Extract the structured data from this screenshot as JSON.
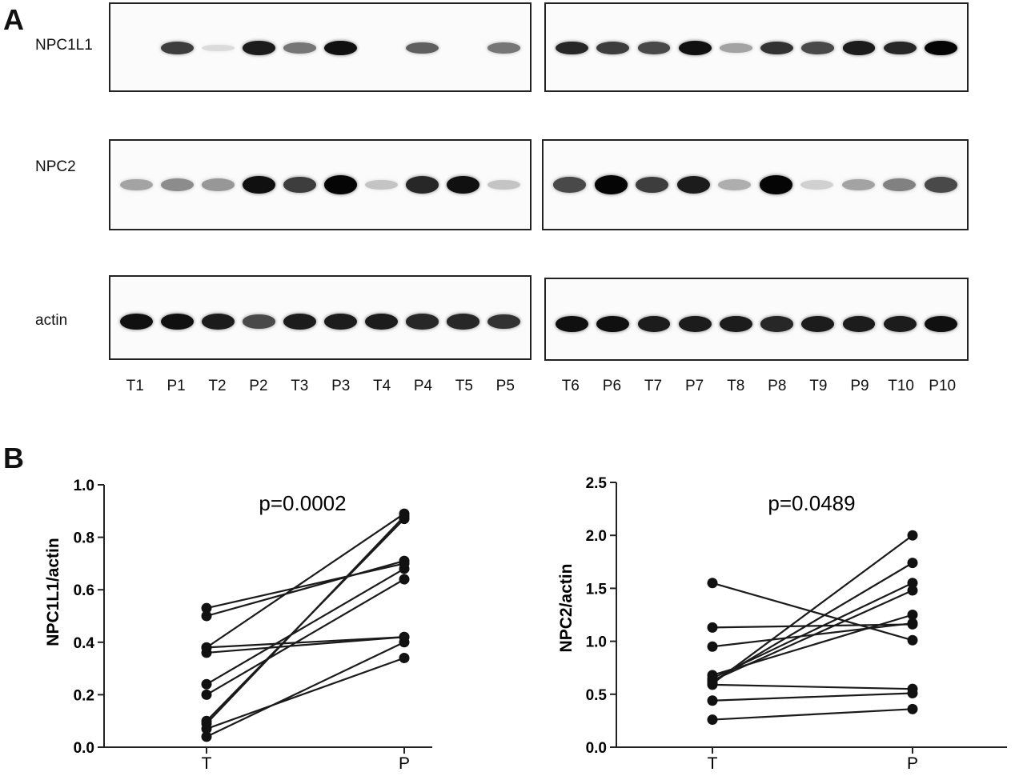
{
  "panels": {
    "a_letter": "A",
    "b_letter": "B"
  },
  "blots": [
    {
      "label": "NPC1L1",
      "left_bands": [
        0,
        0.75,
        0.05,
        0.9,
        0.5,
        0.95,
        0,
        0.6,
        0,
        0.5
      ],
      "right_bands": [
        0.85,
        0.75,
        0.7,
        0.95,
        0.3,
        0.8,
        0.7,
        0.9,
        0.85,
        1.0
      ]
    },
    {
      "label": "NPC2",
      "left_bands": [
        0.3,
        0.4,
        0.35,
        0.95,
        0.75,
        1.0,
        0.15,
        0.85,
        0.95,
        0.15
      ],
      "right_bands": [
        0.7,
        1.0,
        0.75,
        0.9,
        0.25,
        1.0,
        0.1,
        0.3,
        0.45,
        0.7
      ]
    },
    {
      "label": "actin",
      "left_bands": [
        0.95,
        0.95,
        0.9,
        0.7,
        0.9,
        0.9,
        0.9,
        0.85,
        0.85,
        0.8
      ],
      "right_bands": [
        0.95,
        0.95,
        0.9,
        0.9,
        0.9,
        0.85,
        0.9,
        0.9,
        0.9,
        0.95
      ]
    }
  ],
  "lanes_left": [
    "T1",
    "P1",
    "T2",
    "P2",
    "T3",
    "P3",
    "T4",
    "P4",
    "T5",
    "P5"
  ],
  "lanes_right": [
    "T6",
    "P6",
    "T7",
    "P7",
    "T8",
    "P8",
    "T9",
    "P9",
    "T10",
    "P10"
  ],
  "chart_data": [
    {
      "type": "line",
      "title": "p=0.0002",
      "ylabel": "NPC1L1/actin",
      "xlabel": "",
      "categories": [
        "T",
        "P"
      ],
      "ylim": [
        0,
        1.0
      ],
      "yticks": [
        "0.0",
        "0.2",
        "0.4",
        "0.6",
        "0.8",
        "1.0"
      ],
      "pairs": [
        [
          0.04,
          0.4
        ],
        [
          0.07,
          0.34
        ],
        [
          0.09,
          0.88
        ],
        [
          0.1,
          0.87
        ],
        [
          0.2,
          0.64
        ],
        [
          0.24,
          0.68
        ],
        [
          0.36,
          0.42
        ],
        [
          0.38,
          0.42
        ],
        [
          0.38,
          0.89
        ],
        [
          0.5,
          0.71
        ],
        [
          0.53,
          0.7
        ]
      ]
    },
    {
      "type": "line",
      "title": "p=0.0489",
      "ylabel": "NPC2/actin",
      "xlabel": "",
      "categories": [
        "T",
        "P"
      ],
      "ylim": [
        0,
        2.5
      ],
      "yticks": [
        "0.0",
        "0.5",
        "1.0",
        "1.5",
        "2.0",
        "2.5"
      ],
      "pairs": [
        [
          0.26,
          0.36
        ],
        [
          0.44,
          0.51
        ],
        [
          0.59,
          0.55
        ],
        [
          0.6,
          2.0
        ],
        [
          0.62,
          1.74
        ],
        [
          0.63,
          1.48
        ],
        [
          0.65,
          1.55
        ],
        [
          0.68,
          1.25
        ],
        [
          0.95,
          1.17
        ],
        [
          1.13,
          1.16
        ],
        [
          1.55,
          1.01
        ]
      ]
    }
  ]
}
